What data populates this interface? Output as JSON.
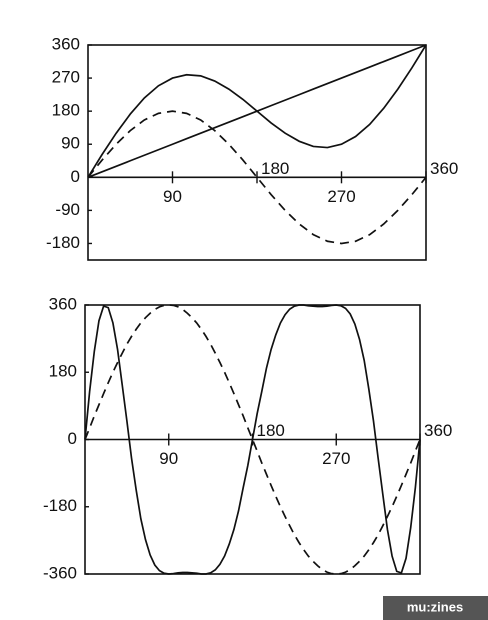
{
  "chart_data": [
    {
      "type": "line",
      "x": [
        0,
        15,
        30,
        45,
        60,
        75,
        90,
        105,
        120,
        135,
        150,
        165,
        180,
        195,
        210,
        225,
        240,
        255,
        270,
        285,
        300,
        315,
        330,
        345,
        360
      ],
      "series": [
        {
          "color": "#111111",
          "dashed": false,
          "values": [
            0,
            15,
            30,
            45,
            60,
            75,
            90,
            105,
            120,
            135,
            150,
            165,
            180,
            195,
            210,
            225,
            240,
            255,
            270,
            285,
            300,
            315,
            330,
            345,
            360
          ]
        },
        {
          "color": "#111111",
          "dashed": false,
          "values": [
            0,
            62,
            120,
            172,
            216,
            249,
            270,
            279,
            276,
            262,
            240,
            212,
            180,
            148,
            120,
            98,
            84,
            81,
            90,
            111,
            144,
            188,
            240,
            298,
            360
          ]
        },
        {
          "color": "#111111",
          "dashed": true,
          "values": [
            0,
            47,
            90,
            127,
            156,
            174,
            180,
            174,
            156,
            127,
            90,
            47,
            0,
            -47,
            -90,
            -127,
            -156,
            -174,
            -180,
            -174,
            -156,
            -127,
            -90,
            -47,
            0
          ]
        }
      ],
      "xlim": [
        0,
        360
      ],
      "ylim": [
        -225,
        360
      ],
      "xticks": [
        90,
        180,
        270,
        360
      ],
      "yticks": [
        360,
        270,
        180,
        90,
        0,
        -90,
        -180
      ]
    },
    {
      "type": "line",
      "x": [
        0,
        5,
        10,
        15,
        20,
        25,
        30,
        35,
        40,
        45,
        50,
        55,
        60,
        65,
        70,
        75,
        80,
        85,
        90,
        95,
        100,
        105,
        110,
        115,
        120,
        125,
        130,
        135,
        140,
        145,
        150,
        155,
        160,
        165,
        170,
        175,
        180,
        185,
        190,
        195,
        200,
        205,
        210,
        215,
        220,
        225,
        230,
        235,
        240,
        245,
        250,
        255,
        260,
        265,
        270,
        275,
        280,
        285,
        290,
        295,
        300,
        305,
        310,
        315,
        320,
        325,
        330,
        335,
        340,
        345,
        350,
        355,
        360
      ],
      "series": [
        {
          "color": "#111111",
          "dashed": false,
          "values": [
            0,
            129,
            236,
            318,
            357,
            353,
            312,
            241,
            146,
            50,
            -50,
            -135,
            -212,
            -268,
            -309,
            -336,
            -351,
            -358,
            -360,
            -359,
            -357,
            -356,
            -356,
            -357,
            -358,
            -360,
            -360,
            -357,
            -349,
            -334,
            -312,
            -280,
            -241,
            -191,
            -129,
            -69,
            0,
            69,
            129,
            191,
            241,
            280,
            312,
            334,
            349,
            357,
            360,
            360,
            358,
            357,
            356,
            356,
            357,
            359,
            360,
            358,
            351,
            336,
            309,
            268,
            212,
            135,
            50,
            -50,
            -146,
            -241,
            -312,
            -353,
            -357,
            -318,
            -236,
            -129,
            0
          ]
        },
        {
          "color": "#111111",
          "dashed": true,
          "values": [
            0,
            31,
            63,
            93,
            123,
            152,
            180,
            206,
            231,
            255,
            276,
            295,
            312,
            326,
            338,
            348,
            355,
            359,
            360,
            359,
            355,
            348,
            338,
            326,
            312,
            295,
            276,
            255,
            231,
            206,
            180,
            152,
            123,
            93,
            63,
            31,
            0,
            -31,
            -63,
            -93,
            -123,
            -152,
            -180,
            -206,
            -231,
            -255,
            -276,
            -295,
            -312,
            -326,
            -338,
            -348,
            -355,
            -359,
            -360,
            -359,
            -355,
            -348,
            -338,
            -326,
            -312,
            -295,
            -276,
            -255,
            -231,
            -206,
            -180,
            -152,
            -123,
            -93,
            -63,
            -31,
            0
          ]
        }
      ],
      "xlim": [
        0,
        360
      ],
      "ylim": [
        -360,
        360
      ],
      "xticks": [
        90,
        180,
        270,
        360
      ],
      "yticks": [
        360,
        180,
        0,
        -180,
        -360
      ]
    }
  ],
  "watermark": "mu:zines"
}
